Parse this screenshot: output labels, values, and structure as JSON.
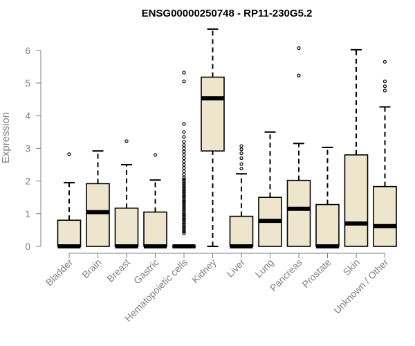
{
  "chart_data": {
    "type": "box",
    "title": "ENSG00000250748 - RP11-230G5.2",
    "ylabel": "Expression",
    "xlabel": "",
    "ylim": [
      0,
      6.7
    ],
    "yticks": [
      "0",
      "1",
      "2",
      "3",
      "4",
      "5",
      "6"
    ],
    "grid": false,
    "box_fill": "#ede6cc",
    "box_stroke": "#000000",
    "axis_color": "#808080",
    "categories": [
      "Bladder",
      "Brain",
      "Breast",
      "Gastric",
      "Hematopoietic cells",
      "Kidney",
      "Liver",
      "Lung",
      "Pancreas",
      "Prostate",
      "Skin",
      "Unknown / Other"
    ],
    "boxes": [
      {
        "min": 0,
        "q1": 0,
        "median": 0,
        "q3": 0.8,
        "max": 1.95,
        "outliers": [
          2.82
        ]
      },
      {
        "min": 0,
        "q1": 0,
        "median": 1.05,
        "q3": 1.92,
        "max": 2.92,
        "outliers": []
      },
      {
        "min": 0,
        "q1": 0,
        "median": 0,
        "q3": 1.17,
        "max": 2.5,
        "outliers": [
          3.22
        ]
      },
      {
        "min": 0,
        "q1": 0,
        "median": 0,
        "q3": 1.05,
        "max": 2.03,
        "outliers": [
          2.8
        ]
      },
      {
        "min": 0,
        "q1": 0,
        "median": 0,
        "q3": 0,
        "max": 0,
        "outliers": [
          0.4,
          0.45,
          0.5,
          0.55,
          0.6,
          0.65,
          0.7,
          0.75,
          0.8,
          0.85,
          0.9,
          0.95,
          1.0,
          1.05,
          1.1,
          1.15,
          1.2,
          1.25,
          1.3,
          1.35,
          1.4,
          1.45,
          1.5,
          1.55,
          1.6,
          1.65,
          1.7,
          1.75,
          1.8,
          1.85,
          1.9,
          1.95,
          2.0,
          2.05,
          2.1,
          2.2,
          2.3,
          2.4,
          2.5,
          2.6,
          2.7,
          2.8,
          2.9,
          3.0,
          3.1,
          3.2,
          3.35,
          3.5,
          3.75,
          5.05,
          5.32
        ]
      },
      {
        "min": 0,
        "q1": 2.92,
        "median": 4.53,
        "q3": 5.18,
        "max": 6.65,
        "outliers": []
      },
      {
        "min": 0,
        "q1": 0,
        "median": 0,
        "q3": 0.92,
        "max": 2.22,
        "outliers": [
          2.38,
          2.52,
          2.7,
          2.85,
          2.97,
          3.07
        ]
      },
      {
        "min": 0,
        "q1": 0,
        "median": 0.78,
        "q3": 1.5,
        "max": 3.5,
        "outliers": []
      },
      {
        "min": 0,
        "q1": 0,
        "median": 1.15,
        "q3": 2.02,
        "max": 3.15,
        "outliers": [
          5.23,
          6.07
        ]
      },
      {
        "min": 0,
        "q1": 0,
        "median": 0,
        "q3": 1.28,
        "max": 3.03,
        "outliers": []
      },
      {
        "min": 0,
        "q1": 0,
        "median": 0.7,
        "q3": 2.8,
        "max": 6.02,
        "outliers": []
      },
      {
        "min": 0,
        "q1": 0,
        "median": 0.62,
        "q3": 1.83,
        "max": 4.27,
        "outliers": [
          4.77,
          4.9,
          5.05,
          5.65
        ]
      }
    ]
  }
}
